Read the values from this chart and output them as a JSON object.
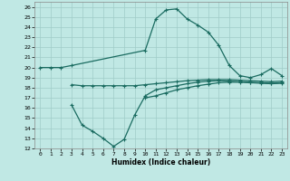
{
  "xlabel": "Humidex (Indice chaleur)",
  "xlim": [
    -0.5,
    23.5
  ],
  "ylim": [
    12,
    26.5
  ],
  "yticks": [
    12,
    13,
    14,
    15,
    16,
    17,
    18,
    19,
    20,
    21,
    22,
    23,
    24,
    25,
    26
  ],
  "xticks": [
    0,
    1,
    2,
    3,
    4,
    5,
    6,
    7,
    8,
    9,
    10,
    11,
    12,
    13,
    14,
    15,
    16,
    17,
    18,
    19,
    20,
    21,
    22,
    23
  ],
  "bg_color": "#c0e8e4",
  "grid_color": "#a0ccc8",
  "line_color": "#1a6b60",
  "line_width": 0.9,
  "marker": "+",
  "marker_size": 3.5,
  "marker_lw": 0.8,
  "curves": [
    {
      "x": [
        0,
        1,
        2,
        3,
        10,
        11,
        12,
        13,
        14,
        15,
        16,
        17,
        18,
        19,
        20,
        21,
        22,
        23
      ],
      "y": [
        20.0,
        20.0,
        20.0,
        20.2,
        21.7,
        24.8,
        25.7,
        25.8,
        24.8,
        24.2,
        23.5,
        22.2,
        20.2,
        19.2,
        19.0,
        19.3,
        19.9,
        19.2
      ]
    },
    {
      "x": [
        0,
        1,
        2,
        3,
        4,
        5,
        6,
        7,
        8,
        9,
        10,
        11,
        12,
        13,
        14,
        15,
        16,
        17,
        18,
        19,
        20,
        21,
        22,
        23
      ],
      "y": [
        null,
        null,
        null,
        18.3,
        18.2,
        18.2,
        18.2,
        18.2,
        18.2,
        18.2,
        18.3,
        18.4,
        18.5,
        18.6,
        18.7,
        18.75,
        18.8,
        18.8,
        18.8,
        18.75,
        18.7,
        18.65,
        18.6,
        18.65
      ]
    },
    {
      "x": [
        0,
        1,
        2,
        3,
        4,
        5,
        6,
        7,
        8,
        9,
        10,
        11,
        12,
        13,
        14,
        15,
        16,
        17,
        18,
        19,
        20,
        21,
        22,
        23
      ],
      "y": [
        null,
        null,
        null,
        16.3,
        14.3,
        13.7,
        13.0,
        12.2,
        12.9,
        15.3,
        17.2,
        17.8,
        18.0,
        18.2,
        18.4,
        18.55,
        18.65,
        18.7,
        18.65,
        18.6,
        18.55,
        18.5,
        18.45,
        18.5
      ]
    },
    {
      "x": [
        0,
        1,
        2,
        3,
        4,
        5,
        6,
        7,
        8,
        9,
        10,
        11,
        12,
        13,
        14,
        15,
        16,
        17,
        18,
        19,
        20,
        21,
        22,
        23
      ],
      "y": [
        null,
        null,
        null,
        null,
        null,
        null,
        null,
        null,
        null,
        null,
        17.0,
        17.2,
        17.5,
        17.8,
        18.0,
        18.2,
        18.35,
        18.5,
        18.55,
        18.55,
        18.5,
        18.45,
        18.4,
        18.45
      ]
    }
  ]
}
